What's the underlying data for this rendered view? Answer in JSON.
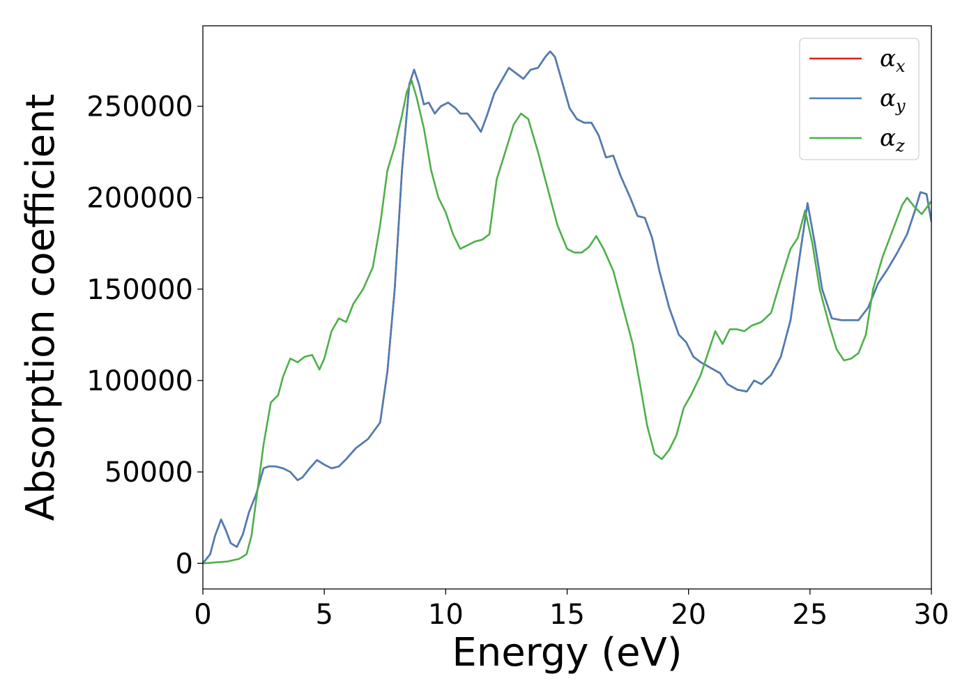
{
  "chart_data": {
    "type": "line",
    "title": "",
    "xlabel": "Energy (eV)",
    "ylabel": "Absorption coefficient",
    "xlim": [
      0,
      30
    ],
    "ylim": [
      -14000,
      294000
    ],
    "xticks": [
      0,
      5,
      10,
      15,
      20,
      25,
      30
    ],
    "yticks": [
      0,
      50000,
      100000,
      150000,
      200000,
      250000
    ],
    "xtick_labels": [
      "0",
      "5",
      "10",
      "15",
      "20",
      "25",
      "30"
    ],
    "ytick_labels": [
      "0",
      "50000",
      "100000",
      "150000",
      "200000",
      "250000"
    ],
    "grid": false,
    "legend_position": "top-right",
    "series": [
      {
        "name": "α",
        "subscript": "x",
        "color": "#e41a1c",
        "points": [
          [
            0,
            0
          ],
          [
            0.3,
            5000
          ],
          [
            0.5,
            15000
          ],
          [
            0.75,
            24000
          ],
          [
            0.95,
            18000
          ],
          [
            1.15,
            11000
          ],
          [
            1.4,
            9000
          ],
          [
            1.65,
            16000
          ],
          [
            1.9,
            28000
          ],
          [
            2.2,
            38000
          ],
          [
            2.5,
            52000
          ],
          [
            2.7,
            53000
          ],
          [
            3.0,
            53000
          ],
          [
            3.3,
            52000
          ],
          [
            3.6,
            50000
          ],
          [
            3.9,
            45500
          ],
          [
            4.1,
            47000
          ],
          [
            4.4,
            52000
          ],
          [
            4.7,
            56500
          ],
          [
            5.0,
            54000
          ],
          [
            5.3,
            52000
          ],
          [
            5.6,
            53000
          ],
          [
            5.9,
            57000
          ],
          [
            6.3,
            63000
          ],
          [
            6.8,
            68000
          ],
          [
            7.3,
            77000
          ],
          [
            7.6,
            105000
          ],
          [
            7.9,
            150000
          ],
          [
            8.2,
            215000
          ],
          [
            8.5,
            262000
          ],
          [
            8.7,
            270000
          ],
          [
            8.9,
            262000
          ],
          [
            9.1,
            251000
          ],
          [
            9.3,
            252000
          ],
          [
            9.55,
            246000
          ],
          [
            9.8,
            250000
          ],
          [
            10.1,
            252000
          ],
          [
            10.4,
            249000
          ],
          [
            10.6,
            246000
          ],
          [
            10.9,
            246000
          ],
          [
            11.2,
            241000
          ],
          [
            11.45,
            236000
          ],
          [
            11.7,
            245000
          ],
          [
            12.0,
            257000
          ],
          [
            12.3,
            264000
          ],
          [
            12.6,
            271000
          ],
          [
            12.9,
            268000
          ],
          [
            13.2,
            265000
          ],
          [
            13.5,
            270000
          ],
          [
            13.8,
            271000
          ],
          [
            14.1,
            277000
          ],
          [
            14.3,
            280000
          ],
          [
            14.5,
            277000
          ],
          [
            14.8,
            263000
          ],
          [
            15.1,
            249000
          ],
          [
            15.4,
            243000
          ],
          [
            15.7,
            241000
          ],
          [
            16.0,
            241000
          ],
          [
            16.3,
            234000
          ],
          [
            16.6,
            222000
          ],
          [
            16.9,
            223000
          ],
          [
            17.2,
            212000
          ],
          [
            17.6,
            200000
          ],
          [
            17.9,
            190000
          ],
          [
            18.2,
            189000
          ],
          [
            18.5,
            178000
          ],
          [
            18.8,
            160000
          ],
          [
            19.2,
            140000
          ],
          [
            19.6,
            125000
          ],
          [
            19.9,
            121000
          ],
          [
            20.2,
            113000
          ],
          [
            20.5,
            110000
          ],
          [
            20.9,
            107000
          ],
          [
            21.3,
            104000
          ],
          [
            21.6,
            98000
          ],
          [
            22.0,
            95000
          ],
          [
            22.4,
            94000
          ],
          [
            22.7,
            100000
          ],
          [
            23.0,
            98000
          ],
          [
            23.4,
            103000
          ],
          [
            23.8,
            113000
          ],
          [
            24.2,
            133000
          ],
          [
            24.6,
            170000
          ],
          [
            24.9,
            197000
          ],
          [
            25.2,
            175000
          ],
          [
            25.5,
            150000
          ],
          [
            25.9,
            134000
          ],
          [
            26.3,
            133000
          ],
          [
            26.6,
            133000
          ],
          [
            27.0,
            133000
          ],
          [
            27.4,
            140000
          ],
          [
            27.8,
            153000
          ],
          [
            28.2,
            161000
          ],
          [
            28.6,
            170000
          ],
          [
            29.0,
            180000
          ],
          [
            29.3,
            192000
          ],
          [
            29.55,
            203000
          ],
          [
            29.8,
            202000
          ],
          [
            30.0,
            187000
          ]
        ]
      },
      {
        "name": "α",
        "subscript": "y",
        "color": "#4a7eb5",
        "points": [
          [
            0,
            0
          ],
          [
            0.3,
            5000
          ],
          [
            0.5,
            15000
          ],
          [
            0.75,
            24000
          ],
          [
            0.95,
            18000
          ],
          [
            1.15,
            11000
          ],
          [
            1.4,
            9000
          ],
          [
            1.65,
            16000
          ],
          [
            1.9,
            28000
          ],
          [
            2.2,
            38000
          ],
          [
            2.5,
            52000
          ],
          [
            2.7,
            53000
          ],
          [
            3.0,
            53000
          ],
          [
            3.3,
            52000
          ],
          [
            3.6,
            50000
          ],
          [
            3.9,
            45500
          ],
          [
            4.1,
            47000
          ],
          [
            4.4,
            52000
          ],
          [
            4.7,
            56500
          ],
          [
            5.0,
            54000
          ],
          [
            5.3,
            52000
          ],
          [
            5.6,
            53000
          ],
          [
            5.9,
            57000
          ],
          [
            6.3,
            63000
          ],
          [
            6.8,
            68000
          ],
          [
            7.3,
            77000
          ],
          [
            7.6,
            105000
          ],
          [
            7.9,
            150000
          ],
          [
            8.2,
            215000
          ],
          [
            8.5,
            262000
          ],
          [
            8.7,
            270000
          ],
          [
            8.9,
            262000
          ],
          [
            9.1,
            251000
          ],
          [
            9.3,
            252000
          ],
          [
            9.55,
            246000
          ],
          [
            9.8,
            250000
          ],
          [
            10.1,
            252000
          ],
          [
            10.4,
            249000
          ],
          [
            10.6,
            246000
          ],
          [
            10.9,
            246000
          ],
          [
            11.2,
            241000
          ],
          [
            11.45,
            236000
          ],
          [
            11.7,
            245000
          ],
          [
            12.0,
            257000
          ],
          [
            12.3,
            264000
          ],
          [
            12.6,
            271000
          ],
          [
            12.9,
            268000
          ],
          [
            13.2,
            265000
          ],
          [
            13.5,
            270000
          ],
          [
            13.8,
            271000
          ],
          [
            14.1,
            277000
          ],
          [
            14.3,
            280000
          ],
          [
            14.5,
            277000
          ],
          [
            14.8,
            263000
          ],
          [
            15.1,
            249000
          ],
          [
            15.4,
            243000
          ],
          [
            15.7,
            241000
          ],
          [
            16.0,
            241000
          ],
          [
            16.3,
            234000
          ],
          [
            16.6,
            222000
          ],
          [
            16.9,
            223000
          ],
          [
            17.2,
            212000
          ],
          [
            17.6,
            200000
          ],
          [
            17.9,
            190000
          ],
          [
            18.2,
            189000
          ],
          [
            18.5,
            178000
          ],
          [
            18.8,
            160000
          ],
          [
            19.2,
            140000
          ],
          [
            19.6,
            125000
          ],
          [
            19.9,
            121000
          ],
          [
            20.2,
            113000
          ],
          [
            20.5,
            110000
          ],
          [
            20.9,
            107000
          ],
          [
            21.3,
            104000
          ],
          [
            21.6,
            98000
          ],
          [
            22.0,
            95000
          ],
          [
            22.4,
            94000
          ],
          [
            22.7,
            100000
          ],
          [
            23.0,
            98000
          ],
          [
            23.4,
            103000
          ],
          [
            23.8,
            113000
          ],
          [
            24.2,
            133000
          ],
          [
            24.6,
            170000
          ],
          [
            24.9,
            197000
          ],
          [
            25.2,
            175000
          ],
          [
            25.5,
            150000
          ],
          [
            25.9,
            134000
          ],
          [
            26.3,
            133000
          ],
          [
            26.6,
            133000
          ],
          [
            27.0,
            133000
          ],
          [
            27.4,
            140000
          ],
          [
            27.8,
            153000
          ],
          [
            28.2,
            161000
          ],
          [
            28.6,
            170000
          ],
          [
            29.0,
            180000
          ],
          [
            29.3,
            192000
          ],
          [
            29.55,
            203000
          ],
          [
            29.8,
            202000
          ],
          [
            30.0,
            187000
          ]
        ]
      },
      {
        "name": "α",
        "subscript": "z",
        "color": "#4daf4a",
        "points": [
          [
            0,
            0
          ],
          [
            0.5,
            500
          ],
          [
            1.0,
            1000
          ],
          [
            1.5,
            2500
          ],
          [
            1.8,
            5000
          ],
          [
            2.0,
            15000
          ],
          [
            2.2,
            35000
          ],
          [
            2.5,
            65000
          ],
          [
            2.8,
            88000
          ],
          [
            3.1,
            92000
          ],
          [
            3.3,
            102000
          ],
          [
            3.6,
            112000
          ],
          [
            3.9,
            110000
          ],
          [
            4.2,
            113000
          ],
          [
            4.5,
            114000
          ],
          [
            4.8,
            106000
          ],
          [
            5.0,
            112000
          ],
          [
            5.3,
            127000
          ],
          [
            5.6,
            134000
          ],
          [
            5.9,
            132000
          ],
          [
            6.2,
            142000
          ],
          [
            6.6,
            150000
          ],
          [
            7.0,
            162000
          ],
          [
            7.3,
            185000
          ],
          [
            7.6,
            215000
          ],
          [
            7.9,
            228000
          ],
          [
            8.2,
            245000
          ],
          [
            8.4,
            258000
          ],
          [
            8.6,
            264000
          ],
          [
            8.8,
            255000
          ],
          [
            9.1,
            238000
          ],
          [
            9.4,
            215000
          ],
          [
            9.7,
            200000
          ],
          [
            10.0,
            192000
          ],
          [
            10.3,
            180000
          ],
          [
            10.6,
            172000
          ],
          [
            10.9,
            174000
          ],
          [
            11.2,
            176000
          ],
          [
            11.5,
            177000
          ],
          [
            11.8,
            180000
          ],
          [
            12.1,
            210000
          ],
          [
            12.5,
            227000
          ],
          [
            12.8,
            240000
          ],
          [
            13.1,
            246000
          ],
          [
            13.4,
            243000
          ],
          [
            13.8,
            225000
          ],
          [
            14.2,
            205000
          ],
          [
            14.6,
            185000
          ],
          [
            15.0,
            172000
          ],
          [
            15.3,
            170000
          ],
          [
            15.6,
            170000
          ],
          [
            15.9,
            173000
          ],
          [
            16.2,
            179000
          ],
          [
            16.5,
            172000
          ],
          [
            16.9,
            160000
          ],
          [
            17.3,
            140000
          ],
          [
            17.7,
            120000
          ],
          [
            18.0,
            98000
          ],
          [
            18.3,
            75000
          ],
          [
            18.6,
            60000
          ],
          [
            18.9,
            57000
          ],
          [
            19.2,
            62000
          ],
          [
            19.5,
            70000
          ],
          [
            19.8,
            85000
          ],
          [
            20.1,
            92000
          ],
          [
            20.5,
            103000
          ],
          [
            20.8,
            115000
          ],
          [
            21.1,
            127000
          ],
          [
            21.4,
            120000
          ],
          [
            21.7,
            128000
          ],
          [
            22.0,
            128000
          ],
          [
            22.3,
            127000
          ],
          [
            22.6,
            130000
          ],
          [
            23.0,
            132000
          ],
          [
            23.4,
            137000
          ],
          [
            23.8,
            155000
          ],
          [
            24.2,
            172000
          ],
          [
            24.5,
            178000
          ],
          [
            24.8,
            193000
          ],
          [
            25.1,
            175000
          ],
          [
            25.4,
            150000
          ],
          [
            25.8,
            130000
          ],
          [
            26.1,
            117000
          ],
          [
            26.4,
            111000
          ],
          [
            26.7,
            112000
          ],
          [
            27.0,
            115000
          ],
          [
            27.3,
            125000
          ],
          [
            27.6,
            150000
          ],
          [
            28.0,
            168000
          ],
          [
            28.4,
            182000
          ],
          [
            28.8,
            196000
          ],
          [
            29.0,
            200000
          ],
          [
            29.3,
            195000
          ],
          [
            29.6,
            191000
          ],
          [
            30.0,
            198000
          ]
        ]
      }
    ]
  }
}
